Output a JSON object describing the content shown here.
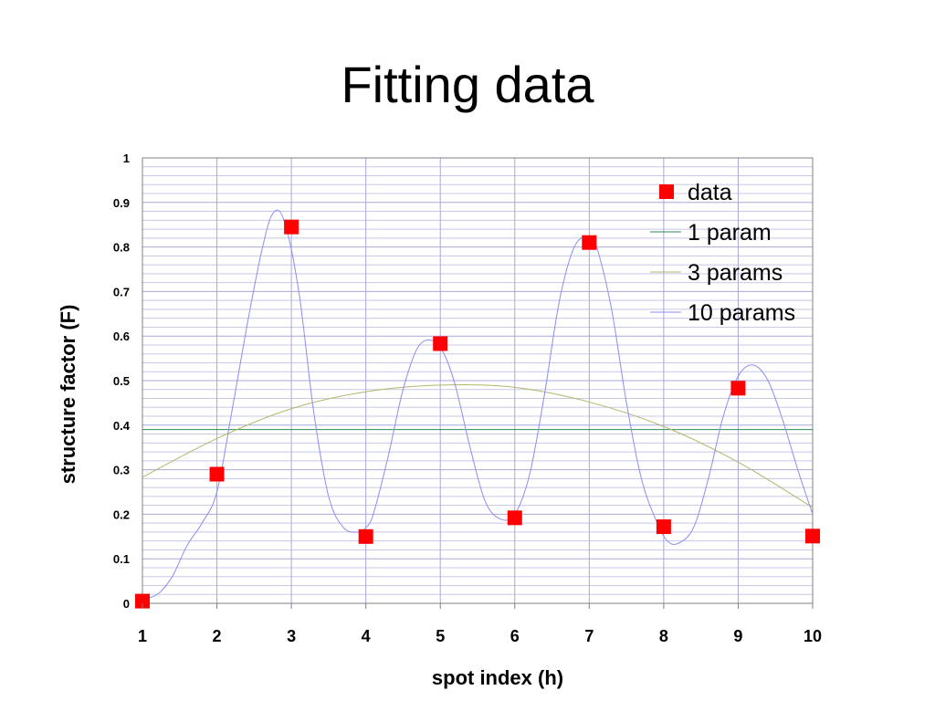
{
  "slide": {
    "title": "Fitting data"
  },
  "chart_data": {
    "type": "line",
    "title": "",
    "xlabel": "spot index (h)",
    "ylabel": "structure factor (F)",
    "xlim": [
      1,
      10
    ],
    "ylim": [
      0,
      1
    ],
    "x_ticks": [
      "1",
      "2",
      "3",
      "4",
      "5",
      "6",
      "7",
      "8",
      "9",
      "10"
    ],
    "y_ticks": [
      "0",
      "0.1",
      "0.2",
      "0.3",
      "0.4",
      "0.5",
      "0.6",
      "0.7",
      "0.8",
      "0.9",
      "1"
    ],
    "grid": true,
    "legend_position": "top-right",
    "series": [
      {
        "name": "data",
        "kind": "markers",
        "marker": "square",
        "color": "#ff0000",
        "x": [
          1,
          2,
          3,
          4,
          5,
          6,
          7,
          8,
          9,
          10
        ],
        "y": [
          0.005,
          0.29,
          0.845,
          0.15,
          0.583,
          0.192,
          0.81,
          0.172,
          0.483,
          0.151
        ]
      },
      {
        "name": "1 param",
        "kind": "line",
        "color": "#2e8b57",
        "x": [
          1,
          10
        ],
        "y": [
          0.39,
          0.39
        ]
      },
      {
        "name": "3 params",
        "kind": "line",
        "color": "#b5b56a",
        "x": [
          1,
          2,
          3,
          4,
          5,
          6,
          7,
          8,
          9,
          10
        ],
        "y": [
          0.283,
          0.37,
          0.437,
          0.475,
          0.49,
          0.485,
          0.452,
          0.397,
          0.317,
          0.215
        ]
      },
      {
        "name": "10 params",
        "kind": "line",
        "color": "#8c8cf0",
        "x": [
          1,
          1.2,
          1.4,
          1.6,
          1.8,
          2,
          2.2,
          2.4,
          2.6,
          2.75,
          2.9,
          3.1,
          3.3,
          3.5,
          3.7,
          3.9,
          4,
          4.1,
          4.3,
          4.5,
          4.7,
          4.9,
          5.05,
          5.2,
          5.4,
          5.6,
          5.8,
          6,
          6.2,
          6.4,
          6.6,
          6.8,
          7,
          7.1,
          7.3,
          7.5,
          7.7,
          7.9,
          8.05,
          8.2,
          8.4,
          8.6,
          8.8,
          9,
          9.2,
          9.4,
          9.6,
          9.8,
          10
        ],
        "y": [
          0.01,
          0.02,
          0.06,
          0.13,
          0.18,
          0.25,
          0.43,
          0.62,
          0.79,
          0.875,
          0.86,
          0.7,
          0.43,
          0.24,
          0.17,
          0.16,
          0.17,
          0.2,
          0.33,
          0.48,
          0.575,
          0.59,
          0.56,
          0.49,
          0.35,
          0.23,
          0.19,
          0.2,
          0.29,
          0.47,
          0.68,
          0.8,
          0.825,
          0.8,
          0.66,
          0.45,
          0.28,
          0.185,
          0.14,
          0.135,
          0.17,
          0.28,
          0.42,
          0.51,
          0.535,
          0.5,
          0.41,
          0.3,
          0.2
        ]
      }
    ]
  }
}
